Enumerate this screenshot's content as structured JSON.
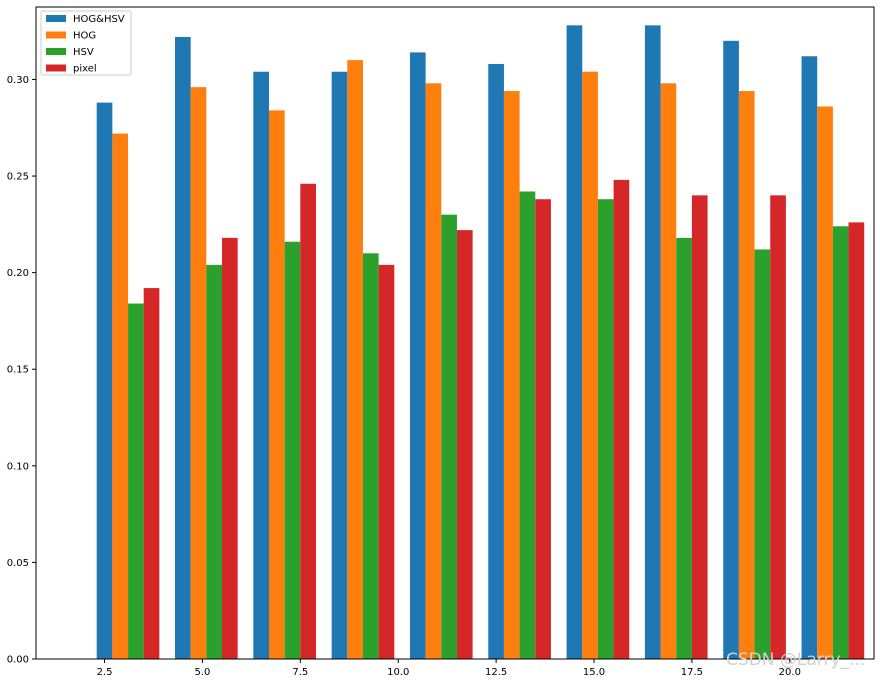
{
  "chart_data": {
    "type": "bar",
    "title": "",
    "xlabel": "",
    "ylabel": "",
    "ylim": [
      0,
      0.3375
    ],
    "xlim": [
      0.75,
      22.15
    ],
    "bar_width": 0.4,
    "x_centers": [
      2.5,
      4.5,
      6.5,
      8.5,
      10.5,
      12.5,
      14.5,
      16.5,
      18.5,
      20.5
    ],
    "xticks": [
      2.5,
      5.0,
      7.5,
      10.0,
      12.5,
      15.0,
      17.5,
      20.0
    ],
    "xtick_labels": [
      "2.5",
      "5.0",
      "7.5",
      "10.0",
      "12.5",
      "15.0",
      "17.5",
      "20.0"
    ],
    "yticks": [
      0,
      0.05,
      0.1,
      0.15,
      0.2,
      0.25,
      0.3
    ],
    "ytick_labels": [
      "0.00",
      "0.05",
      "0.10",
      "0.15",
      "0.20",
      "0.25",
      "0.30"
    ],
    "grid": false,
    "legend": "top-left",
    "series": [
      {
        "name": "HOG&HSV",
        "color": "#1f77b4",
        "offset": 0,
        "values": [
          0.288,
          0.322,
          0.304,
          0.304,
          0.314,
          0.308,
          0.328,
          0.328,
          0.32,
          0.312
        ]
      },
      {
        "name": "HOG",
        "color": "#ff7f0e",
        "offset": 1,
        "values": [
          0.272,
          0.296,
          0.284,
          0.31,
          0.298,
          0.294,
          0.304,
          0.298,
          0.294,
          0.286
        ]
      },
      {
        "name": "HSV",
        "color": "#2ca02c",
        "offset": 2,
        "values": [
          0.184,
          0.204,
          0.216,
          0.21,
          0.23,
          0.242,
          0.238,
          0.218,
          0.212,
          0.224
        ]
      },
      {
        "name": "pixel",
        "color": "#d62728",
        "offset": 3,
        "values": [
          0.192,
          0.218,
          0.246,
          0.204,
          0.222,
          0.238,
          0.248,
          0.24,
          0.24,
          0.226
        ]
      }
    ]
  },
  "watermark": "CSDN @Larry_..."
}
